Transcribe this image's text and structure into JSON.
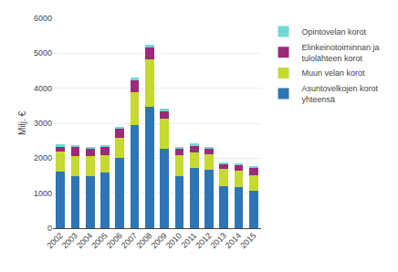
{
  "chart_data": {
    "type": "bar",
    "stacked": true,
    "ylabel": "Milj. €",
    "categories": [
      "2002",
      "2003",
      "2004",
      "2005",
      "2006",
      "2007",
      "2008",
      "2009",
      "2010",
      "2011",
      "2012",
      "2013",
      "2014",
      "2015"
    ],
    "series": [
      {
        "name": "Asuntovelkojen korot\nyhteensä",
        "color": "#2E75B6",
        "values": [
          1620,
          1490,
          1475,
          1580,
          2010,
          2950,
          3470,
          2270,
          1480,
          1710,
          1680,
          1210,
          1175,
          1080
        ]
      },
      {
        "name": "Muun velan korot",
        "color": "#C5D932",
        "values": [
          580,
          580,
          580,
          520,
          560,
          950,
          1350,
          850,
          620,
          450,
          430,
          480,
          460,
          430
        ]
      },
      {
        "name": "Elinkeinotoiminnan ja\ntulolähteen korot",
        "color": "#9B2A7A",
        "values": [
          130,
          240,
          220,
          210,
          270,
          330,
          350,
          220,
          160,
          200,
          150,
          140,
          170,
          200
        ]
      },
      {
        "name": "Opintovelan korot",
        "color": "#70D9D3",
        "values": [
          60,
          60,
          55,
          60,
          60,
          70,
          75,
          70,
          60,
          60,
          55,
          55,
          55,
          55
        ]
      }
    ],
    "ylim": [
      0,
      6000
    ],
    "yticks": [
      0,
      1000,
      2000,
      3000,
      4000,
      5000,
      6000
    ],
    "grid": true,
    "legend": "right"
  }
}
